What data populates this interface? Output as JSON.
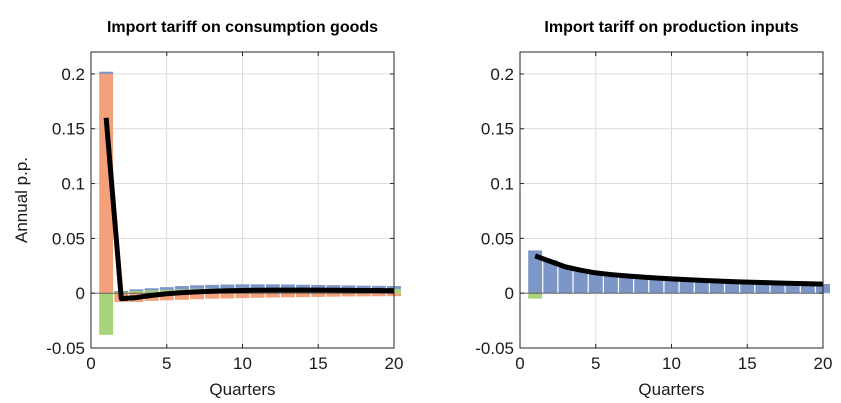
{
  "chart_data": [
    {
      "type": "bar",
      "title": "Import tariff on consumption goods",
      "xlabel": "Quarters",
      "ylabel": "Annual p.p.",
      "xlim": [
        0,
        20
      ],
      "ylim": [
        -0.05,
        0.22
      ],
      "xticks": [
        "0",
        "5",
        "10",
        "15",
        "20"
      ],
      "yticks": [
        "-0.05",
        "0",
        "0.05",
        "0.1",
        "0.15",
        "0.2"
      ],
      "grid": true,
      "x": [
        1,
        2,
        3,
        4,
        5,
        6,
        7,
        8,
        9,
        10,
        11,
        12,
        13,
        14,
        15,
        16,
        17,
        18,
        19,
        20
      ],
      "series": [
        {
          "color": "#f4a07a",
          "values": [
            0.2,
            -0.008,
            -0.008,
            -0.007,
            -0.0065,
            -0.006,
            -0.0055,
            -0.005,
            -0.0048,
            -0.0045,
            -0.0042,
            -0.004,
            -0.0038,
            -0.0036,
            -0.0034,
            -0.0032,
            -0.003,
            -0.0029,
            -0.0028,
            -0.0027
          ]
        },
        {
          "color": "#a9d37b",
          "values": [
            -0.038,
            0.001,
            0.002,
            0.0025,
            0.003,
            0.0035,
            0.004,
            0.0042,
            0.0044,
            0.0045,
            0.0045,
            0.0045,
            0.0044,
            0.0043,
            0.0042,
            0.0041,
            0.004,
            0.0039,
            0.0038,
            0.0037
          ]
        },
        {
          "color": "#7d96c8",
          "values": [
            0.002,
            0.001,
            0.0015,
            0.002,
            0.0025,
            0.003,
            0.0032,
            0.0034,
            0.0035,
            0.0036,
            0.0036,
            0.0036,
            0.0035,
            0.0034,
            0.0033,
            0.0032,
            0.0031,
            0.003,
            0.0029,
            0.0028
          ]
        }
      ],
      "line": {
        "color": "#000000",
        "values": [
          0.16,
          -0.005,
          -0.004,
          -0.002,
          -0.0005,
          0.0005,
          0.0012,
          0.0018,
          0.0022,
          0.0025,
          0.0027,
          0.0028,
          0.0028,
          0.0028,
          0.0028,
          0.0027,
          0.0026,
          0.0025,
          0.0024,
          0.0023
        ]
      }
    },
    {
      "type": "bar",
      "title": "Import tariff on production inputs",
      "xlabel": "Quarters",
      "ylabel": "",
      "xlim": [
        0,
        20
      ],
      "ylim": [
        -0.05,
        0.22
      ],
      "xticks": [
        "0",
        "5",
        "10",
        "15",
        "20"
      ],
      "yticks": [
        "-0.05",
        "0",
        "0.05",
        "0.1",
        "0.15",
        "0.2"
      ],
      "grid": true,
      "x": [
        1,
        2,
        3,
        4,
        5,
        6,
        7,
        8,
        9,
        10,
        11,
        12,
        13,
        14,
        15,
        16,
        17,
        18,
        19,
        20
      ],
      "series": [
        {
          "color": "#7d96c8",
          "values": [
            0.039,
            0.03,
            0.025,
            0.021,
            0.019,
            0.017,
            0.0158,
            0.0148,
            0.014,
            0.0132,
            0.0125,
            0.0118,
            0.0112,
            0.0107,
            0.0102,
            0.0098,
            0.0094,
            0.009,
            0.0087,
            0.0084
          ]
        },
        {
          "color": "#a9d37b",
          "values": [
            -0.005,
            0,
            0,
            0,
            0,
            0,
            0,
            0,
            0,
            0,
            0,
            0,
            0,
            0,
            0,
            0,
            0,
            0,
            0,
            0
          ]
        }
      ],
      "line": {
        "color": "#000000",
        "values": [
          0.034,
          0.029,
          0.024,
          0.021,
          0.0185,
          0.017,
          0.0158,
          0.0148,
          0.0139,
          0.0131,
          0.0124,
          0.0117,
          0.0111,
          0.0106,
          0.0101,
          0.0097,
          0.0093,
          0.0089,
          0.0086,
          0.0083
        ]
      }
    }
  ]
}
